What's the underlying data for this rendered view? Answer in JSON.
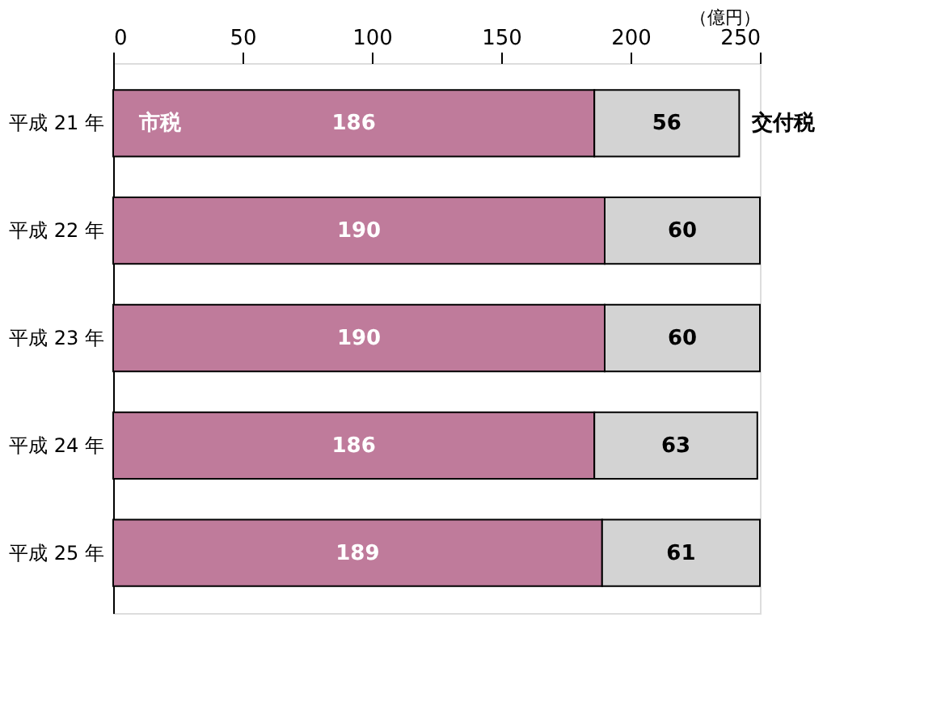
{
  "chart_data": {
    "type": "bar",
    "orientation": "horizontal",
    "stacked": true,
    "data_labels": true,
    "xlabel": "（億円）",
    "categories": [
      "平成 21 年",
      "平成 22 年",
      "平成 23 年",
      "平成 24 年",
      "平成 25 年"
    ],
    "series": [
      {
        "name": "市税",
        "color": "#bf7b9b",
        "values": [
          186,
          190,
          190,
          186,
          189
        ]
      },
      {
        "name": "交付税",
        "color": "#d3d3d3",
        "values": [
          56,
          60,
          60,
          63,
          61
        ]
      }
    ],
    "xlim": [
      0,
      250
    ],
    "xticks": [
      0,
      50,
      100,
      150,
      200,
      250
    ],
    "grid": false
  }
}
